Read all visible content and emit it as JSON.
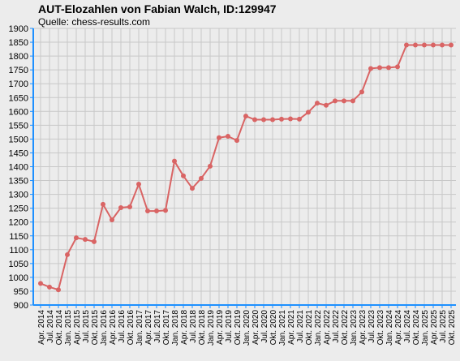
{
  "header": {
    "title": "AUT-Elozahlen von Fabian Walch, ID:129947",
    "subtitle": "Quelle: chess-results.com"
  },
  "colors": {
    "background": "#ececec",
    "plot_background": "#ececec",
    "grid": "#c8c8c8",
    "axis": "#1e90ff",
    "line": "#d96464",
    "marker": "#d96464"
  },
  "chart_data": {
    "type": "line",
    "title": "AUT-Elozahlen von Fabian Walch, ID:129947",
    "subtitle": "Quelle: chess-results.com",
    "xlabel": "",
    "ylabel": "",
    "ylim": [
      900,
      1900
    ],
    "yticks": [
      900,
      950,
      1000,
      1050,
      1100,
      1150,
      1200,
      1250,
      1300,
      1350,
      1400,
      1450,
      1500,
      1550,
      1600,
      1650,
      1700,
      1750,
      1800,
      1850,
      1900
    ],
    "grid": true,
    "legend": "none",
    "categories": [
      "Apr. 2014",
      "Jul. 2014",
      "Okt. 2014",
      "Jan. 2015",
      "Apr. 2015",
      "Jul. 2015",
      "Okt. 2015",
      "Jan. 2016",
      "Apr. 2016",
      "Jul. 2016",
      "Okt. 2016",
      "Jan. 2017",
      "Apr. 2017",
      "Jul. 2017",
      "Okt. 2017",
      "Jan. 2018",
      "Apr. 2018",
      "Jul. 2018",
      "Okt. 2018",
      "Jan. 2019",
      "Apr. 2019",
      "Jul. 2019",
      "Okt. 2019",
      "Jan. 2020",
      "Apr. 2020",
      "Jul. 2020",
      "Okt. 2020",
      "Jan. 2021",
      "Apr. 2021",
      "Jul. 2021",
      "Okt. 2021",
      "Jan. 2022",
      "Apr. 2022",
      "Jul. 2022",
      "Okt. 2022",
      "Jan. 2023",
      "Apr. 2023",
      "Jul. 2023",
      "Okt. 2023",
      "Jan. 2024",
      "Apr. 2024",
      "Jul. 2024",
      "Okt. 2024",
      "Jan. 2025",
      "Apr. 2025",
      "Jul. 2025",
      "Okt. 2025"
    ],
    "series": [
      {
        "values": [
          978,
          965,
          955,
          1082,
          1143,
          1137,
          1129,
          1264,
          1208,
          1252,
          1255,
          1337,
          1240,
          1240,
          1242,
          1420,
          1367,
          1322,
          1358,
          1402,
          1505,
          1510,
          1495,
          1583,
          1570,
          1570,
          1570,
          1572,
          1573,
          1572,
          1597,
          1630,
          1622,
          1638,
          1638,
          1638,
          1670,
          1755,
          1758,
          1758,
          1761,
          1840,
          1840,
          1840,
          1840,
          1840,
          1840
        ]
      }
    ]
  }
}
